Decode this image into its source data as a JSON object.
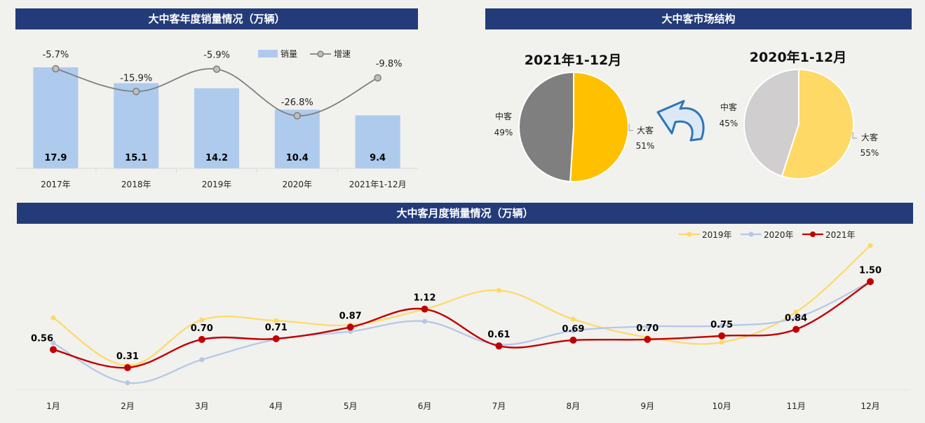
{
  "colors": {
    "band": "#243b7a",
    "bar": "#aecbed",
    "growth_line": "#7f7f7f",
    "series_2019": "#ffd966",
    "series_2020": "#b4c7e7",
    "series_2021": "#c00000",
    "pie_2021_large": "#ffc000",
    "pie_2021_medium": "#7f7f7f",
    "pie_2020_large": "#ffd966",
    "pie_2020_medium": "#d0cece",
    "arrow": "#2e75b6"
  },
  "chart_data": [
    {
      "id": "annual",
      "type": "bar",
      "title": "大中客年度销量情况（万辆）",
      "categories": [
        "2017年",
        "2018年",
        "2019年",
        "2020年",
        "2021年1-12月"
      ],
      "series": [
        {
          "name": "销量",
          "type": "bar",
          "values": [
            17.9,
            15.1,
            14.2,
            10.4,
            9.4
          ],
          "labels": [
            "17.9",
            "15.1",
            "14.2",
            "10.4",
            "9.4"
          ]
        },
        {
          "name": "增速",
          "type": "line",
          "values": [
            -5.7,
            -15.9,
            -5.9,
            -26.8,
            -9.8
          ],
          "labels": [
            "-5.7%",
            "-15.9%",
            "-5.9%",
            "-26.8%",
            "-9.8%"
          ]
        }
      ],
      "legend_position": "top-right",
      "grid": false
    },
    {
      "id": "structure",
      "type": "pie",
      "title": "大中客市场结构",
      "pies": [
        {
          "title": "2021年1-12月",
          "slices": [
            {
              "name": "大客",
              "value": 51,
              "label": "51%"
            },
            {
              "name": "中客",
              "value": 49,
              "label": "49%"
            }
          ]
        },
        {
          "title": "2020年1-12月",
          "slices": [
            {
              "name": "大客",
              "value": 55,
              "label": "55%"
            },
            {
              "name": "中客",
              "value": 45,
              "label": "45%"
            }
          ]
        }
      ]
    },
    {
      "id": "monthly",
      "type": "line",
      "title": "大中客月度销量情况（万辆）",
      "categories": [
        "1月",
        "2月",
        "3月",
        "4月",
        "5月",
        "6月",
        "7月",
        "8月",
        "9月",
        "10月",
        "11月",
        "12月"
      ],
      "series": [
        {
          "name": "2019年",
          "values": [
            1.0,
            0.34,
            0.97,
            0.96,
            0.9,
            1.12,
            1.38,
            0.98,
            0.73,
            0.66,
            1.08,
            2.0
          ]
        },
        {
          "name": "2020年",
          "values": [
            0.65,
            0.1,
            0.42,
            0.7,
            0.81,
            0.95,
            0.63,
            0.82,
            0.88,
            0.89,
            1.0,
            1.5
          ]
        },
        {
          "name": "2021年",
          "values": [
            0.56,
            0.31,
            0.7,
            0.71,
            0.87,
            1.12,
            0.61,
            0.69,
            0.7,
            0.75,
            0.84,
            1.5
          ],
          "labels": [
            "0.56",
            "0.31",
            "0.70",
            "0.71",
            "0.87",
            "1.12",
            "0.61",
            "0.69",
            "0.70",
            "0.75",
            "0.84",
            "1.50"
          ]
        }
      ],
      "legend_position": "top-right",
      "grid": false
    }
  ]
}
